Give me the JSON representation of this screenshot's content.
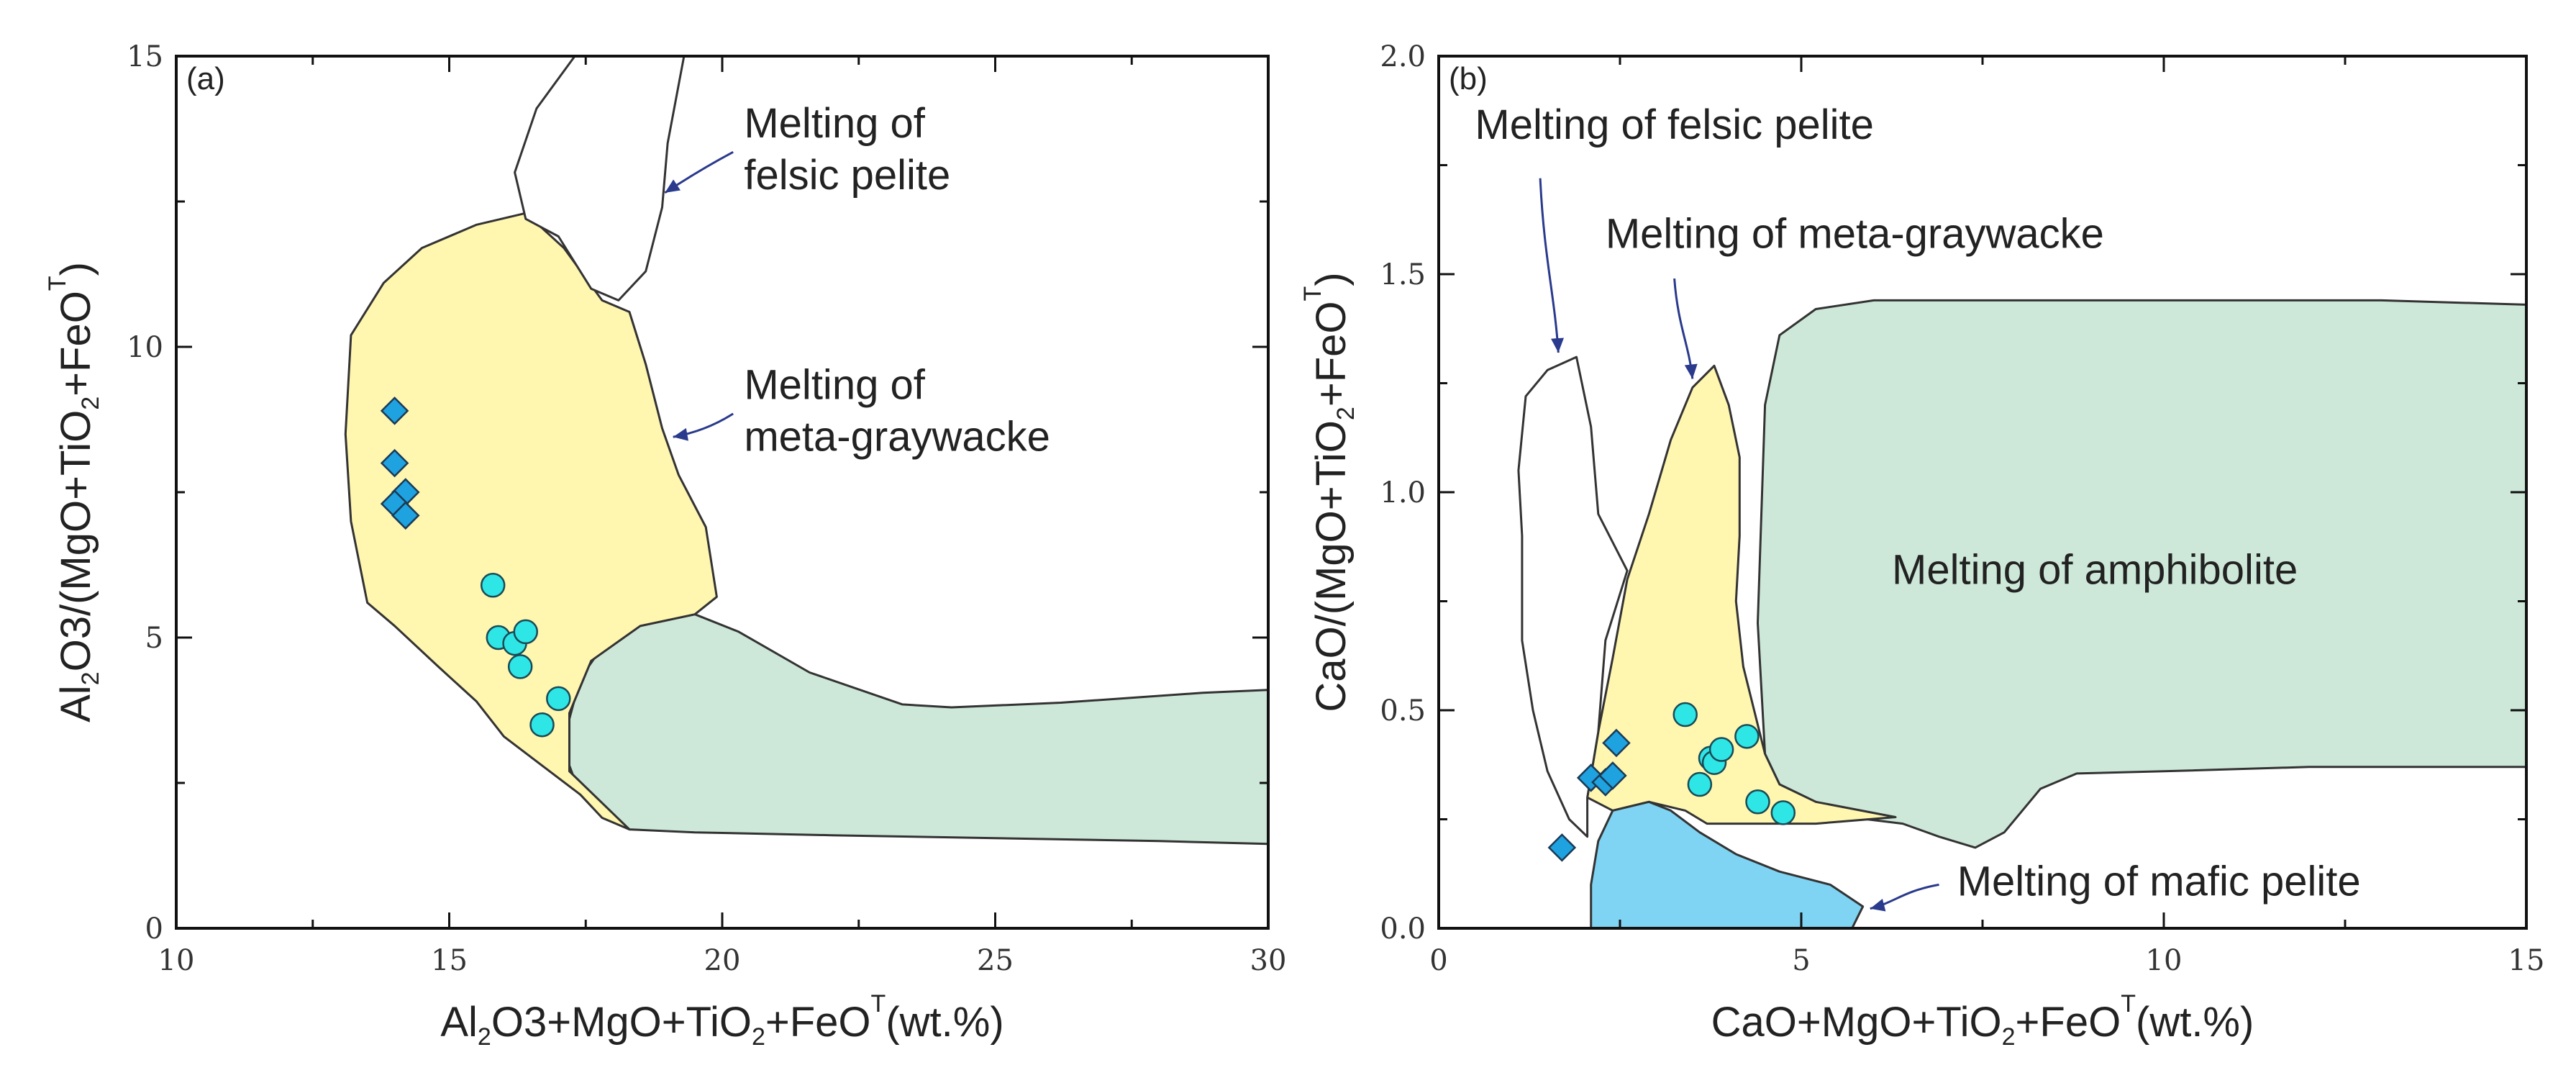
{
  "colors": {
    "felsic": "#ffffff",
    "graywacke": "#fff6b0",
    "amphibolite": "#cde8d9",
    "mafic": "#7fd3f3",
    "diamond": "#1fa2e0",
    "circle": "#2ee6e6",
    "arrow": "#2a3a8c"
  },
  "chart_data": [
    {
      "type": "scatter",
      "panel_label": "(a)",
      "xlim": [
        10,
        30
      ],
      "ylim": [
        0,
        15
      ],
      "xticks": [
        10,
        15,
        20,
        25,
        30
      ],
      "yticks": [
        0,
        5,
        10,
        15
      ],
      "xlabel_parts": [
        "Al",
        "2",
        "O",
        "3",
        "+MgO+TiO",
        "2",
        "+FeO",
        "T",
        "(wt.%)"
      ],
      "ylabel_parts": [
        "Al",
        "2",
        "O",
        "3",
        "/(MgO+TiO",
        "2",
        "+FeO",
        "T",
        ")"
      ],
      "regions": [
        {
          "name": "Melting of amphibolite",
          "fill_key": "amphibolite",
          "points": [
            [
              18,
              5.1
            ],
            [
              19.5,
              5.4
            ],
            [
              20.3,
              5.1
            ],
            [
              21.6,
              4.4
            ],
            [
              23.3,
              3.85
            ],
            [
              24.2,
              3.8
            ],
            [
              26.2,
              3.88
            ],
            [
              28.8,
              4.05
            ],
            [
              30,
              4.1
            ],
            [
              30,
              1.45
            ],
            [
              28,
              1.5
            ],
            [
              25,
              1.55
            ],
            [
              22,
              1.6
            ],
            [
              19.5,
              1.65
            ],
            [
              18.3,
              1.7
            ],
            [
              17.9,
              1.9
            ],
            [
              17.4,
              2.3
            ],
            [
              17.2,
              2.8
            ],
            [
              17.2,
              3.6
            ],
            [
              17.4,
              4.3
            ]
          ]
        },
        {
          "name": "Melting of meta-graywacke",
          "fill_key": "graywacke",
          "points": [
            [
              16.4,
              12.3
            ],
            [
              15.5,
              12.1
            ],
            [
              14.5,
              11.7
            ],
            [
              13.8,
              11.1
            ],
            [
              13.2,
              10.2
            ],
            [
              13.1,
              8.5
            ],
            [
              13.2,
              7.0
            ],
            [
              13.5,
              5.6
            ],
            [
              14.0,
              5.2
            ],
            [
              14.8,
              4.5
            ],
            [
              15.5,
              3.9
            ],
            [
              16.0,
              3.3
            ],
            [
              16.7,
              2.8
            ],
            [
              17.4,
              2.3
            ],
            [
              17.8,
              1.9
            ],
            [
              18.3,
              1.7
            ],
            [
              17.2,
              2.7
            ],
            [
              17.2,
              3.7
            ],
            [
              17.6,
              4.6
            ],
            [
              18.5,
              5.2
            ],
            [
              19.5,
              5.4
            ],
            [
              19.9,
              5.7
            ],
            [
              19.7,
              6.9
            ],
            [
              19.2,
              7.8
            ],
            [
              18.9,
              8.6
            ],
            [
              18.6,
              9.7
            ],
            [
              18.3,
              10.6
            ],
            [
              17.8,
              10.8
            ],
            [
              17.1,
              11.7
            ]
          ]
        },
        {
          "name": "Melting of felsic pelite",
          "fill_key": "felsic",
          "points": [
            [
              16.2,
              13.0
            ],
            [
              16.6,
              14.1
            ],
            [
              17.3,
              15
            ],
            [
              19.3,
              15
            ],
            [
              19.0,
              13.5
            ],
            [
              18.9,
              12.4
            ],
            [
              18.6,
              11.3
            ],
            [
              18.1,
              10.8
            ],
            [
              17.6,
              11.0
            ],
            [
              17.0,
              11.9
            ],
            [
              16.4,
              12.2
            ]
          ]
        }
      ],
      "series": [
        {
          "name": "diamonds",
          "marker": "diamond",
          "color_key": "diamond",
          "x": [
            14.0,
            14.0,
            14.2,
            14.0,
            14.2
          ],
          "y": [
            8.9,
            8.0,
            7.5,
            7.3,
            7.1
          ]
        },
        {
          "name": "circles",
          "marker": "circle",
          "color_key": "circle",
          "x": [
            15.8,
            15.9,
            16.2,
            16.4,
            16.3,
            17.0,
            16.7
          ],
          "y": [
            5.9,
            5.0,
            4.9,
            5.1,
            4.5,
            3.95,
            3.5
          ]
        }
      ],
      "annotations": [
        {
          "lines": [
            "Melting of",
            "felsic pelite"
          ],
          "x": 20.4,
          "y": 13.6,
          "arrow": [
            [
              20.2,
              13.35
            ],
            [
              19.6,
              13.05
            ],
            [
              18.95,
              12.65
            ]
          ]
        },
        {
          "lines": [
            "Melting of",
            "meta-graywacke"
          ],
          "x": 20.4,
          "y": 9.1,
          "arrow": [
            [
              20.2,
              8.85
            ],
            [
              19.7,
              8.55
            ],
            [
              19.1,
              8.45
            ]
          ]
        }
      ]
    },
    {
      "type": "scatter",
      "panel_label": "(b)",
      "xlim": [
        0,
        15
      ],
      "ylim": [
        0,
        2.0
      ],
      "xticks": [
        0,
        5,
        10,
        15
      ],
      "yticks": [
        0.0,
        0.5,
        1.0,
        1.5,
        2.0
      ],
      "ytick_labels": [
        "0.0",
        "0.5",
        "1.0",
        "1.5",
        "2.0"
      ],
      "xlabel_parts": [
        "CaO+MgO+TiO",
        "2",
        "+FeO",
        "T",
        "(wt.%)"
      ],
      "ylabel_parts": [
        "CaO/(MgO+TiO",
        "2",
        "+FeO",
        "T",
        ")"
      ],
      "regions": [
        {
          "name": "Melting of amphibolite",
          "fill_key": "amphibolite",
          "points": [
            [
              5.2,
              1.42
            ],
            [
              6.0,
              1.44
            ],
            [
              8,
              1.44
            ],
            [
              10,
              1.44
            ],
            [
              13,
              1.44
            ],
            [
              15,
              1.43
            ],
            [
              15,
              0.37
            ],
            [
              12,
              0.37
            ],
            [
              10,
              0.36
            ],
            [
              8.8,
              0.355
            ],
            [
              8.3,
              0.32
            ],
            [
              7.8,
              0.22
            ],
            [
              7.4,
              0.185
            ],
            [
              6.9,
              0.21
            ],
            [
              6.4,
              0.24
            ],
            [
              5.9,
              0.25
            ],
            [
              5.2,
              0.29
            ],
            [
              4.7,
              0.33
            ],
            [
              4.5,
              0.4
            ],
            [
              4.4,
              0.7
            ],
            [
              4.5,
              1.2
            ],
            [
              4.7,
              1.36
            ]
          ]
        },
        {
          "name": "Melting of meta-graywacke",
          "fill_key": "graywacke",
          "points": [
            [
              3.8,
              1.29
            ],
            [
              3.5,
              1.24
            ],
            [
              3.2,
              1.12
            ],
            [
              2.9,
              0.95
            ],
            [
              2.6,
              0.8
            ],
            [
              2.4,
              0.62
            ],
            [
              2.2,
              0.45
            ],
            [
              2.05,
              0.3
            ],
            [
              2.4,
              0.27
            ],
            [
              2.9,
              0.29
            ],
            [
              3.4,
              0.27
            ],
            [
              3.7,
              0.24
            ],
            [
              5.2,
              0.24
            ],
            [
              6.3,
              0.255
            ],
            [
              5.2,
              0.29
            ],
            [
              4.7,
              0.33
            ],
            [
              4.5,
              0.4
            ],
            [
              4.2,
              0.6
            ],
            [
              4.1,
              0.75
            ],
            [
              4.15,
              0.9
            ],
            [
              4.15,
              1.08
            ],
            [
              4.0,
              1.2
            ]
          ]
        },
        {
          "name": "Melting of felsic pelite",
          "fill_key": "felsic",
          "points": [
            [
              1.9,
              1.31
            ],
            [
              1.5,
              1.28
            ],
            [
              1.2,
              1.22
            ],
            [
              1.1,
              1.05
            ],
            [
              1.15,
              0.9
            ],
            [
              1.15,
              0.75
            ],
            [
              1.15,
              0.66
            ],
            [
              1.3,
              0.5
            ],
            [
              1.5,
              0.36
            ],
            [
              1.8,
              0.25
            ],
            [
              2.05,
              0.21
            ],
            [
              2.05,
              0.3
            ],
            [
              2.2,
              0.45
            ],
            [
              2.3,
              0.66
            ],
            [
              2.6,
              0.82
            ],
            [
              2.2,
              0.95
            ],
            [
              2.1,
              1.15
            ]
          ]
        },
        {
          "name": "Melting of mafic pelite",
          "fill_key": "mafic",
          "points": [
            [
              2.1,
              0.0
            ],
            [
              5.7,
              0.0
            ],
            [
              5.85,
              0.05
            ],
            [
              5.4,
              0.1
            ],
            [
              4.7,
              0.13
            ],
            [
              4.1,
              0.17
            ],
            [
              3.6,
              0.22
            ],
            [
              3.2,
              0.27
            ],
            [
              2.9,
              0.29
            ],
            [
              2.4,
              0.27
            ],
            [
              2.2,
              0.2
            ],
            [
              2.1,
              0.1
            ]
          ]
        }
      ],
      "series": [
        {
          "name": "diamonds",
          "marker": "diamond",
          "color_key": "diamond",
          "x": [
            1.7,
            2.1,
            2.3,
            2.4,
            2.45
          ],
          "y": [
            0.185,
            0.345,
            0.335,
            0.35,
            0.425
          ]
        },
        {
          "name": "circles",
          "marker": "circle",
          "color_key": "circle",
          "x": [
            3.4,
            3.6,
            3.75,
            3.8,
            3.9,
            4.25,
            4.4,
            4.75
          ],
          "y": [
            0.49,
            0.33,
            0.39,
            0.38,
            0.41,
            0.44,
            0.29,
            0.265
          ]
        }
      ],
      "annotations": [
        {
          "lines": [
            "Melting of felsic pelite"
          ],
          "x": 0.5,
          "y": 1.81,
          "arrow": [
            [
              1.4,
              1.72
            ],
            [
              1.45,
              1.54
            ],
            [
              1.6,
              1.45
            ],
            [
              1.65,
              1.32
            ]
          ]
        },
        {
          "lines": [
            "Melting of meta-graywacke"
          ],
          "x": 2.3,
          "y": 1.56,
          "arrow": [
            [
              3.25,
              1.49
            ],
            [
              3.3,
              1.38
            ],
            [
              3.45,
              1.34
            ],
            [
              3.5,
              1.26
            ]
          ]
        },
        {
          "lines": [
            "Melting of a",
            "mphibolite"
          ],
          "inline": true,
          "x": 6.25,
          "y": 0.79
        },
        {
          "lines": [
            "Melting of mafic pelite"
          ],
          "x": 7.15,
          "y": 0.075,
          "arrow": [
            [
              6.9,
              0.1
            ],
            [
              6.4,
              0.085
            ],
            [
              6.3,
              0.06
            ],
            [
              5.95,
              0.045
            ]
          ]
        }
      ]
    }
  ]
}
